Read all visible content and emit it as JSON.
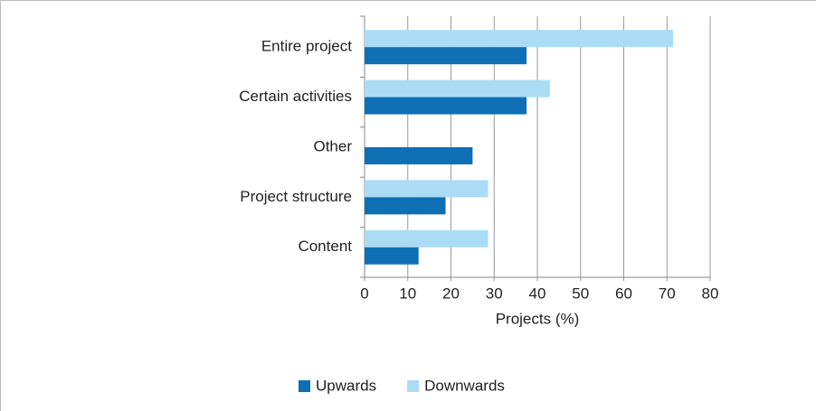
{
  "chart_data": {
    "type": "bar",
    "orientation": "horizontal",
    "categories": [
      "Entire project",
      "Certain activities",
      "Other",
      "Project structure",
      "Content"
    ],
    "series": [
      {
        "name": "Upwards",
        "color": "#0f6fb5",
        "values": [
          37.5,
          37.5,
          25,
          18.75,
          12.5
        ]
      },
      {
        "name": "Downwards",
        "color": "#aadcf5",
        "values": [
          71.4,
          42.9,
          0,
          28.6,
          28.6
        ]
      }
    ],
    "xlabel": "Projects (%)",
    "xlim": [
      0,
      80
    ],
    "xticks": [
      0,
      10,
      20,
      30,
      40,
      50,
      60,
      70,
      80
    ],
    "grid": true,
    "legend": "bottom"
  }
}
